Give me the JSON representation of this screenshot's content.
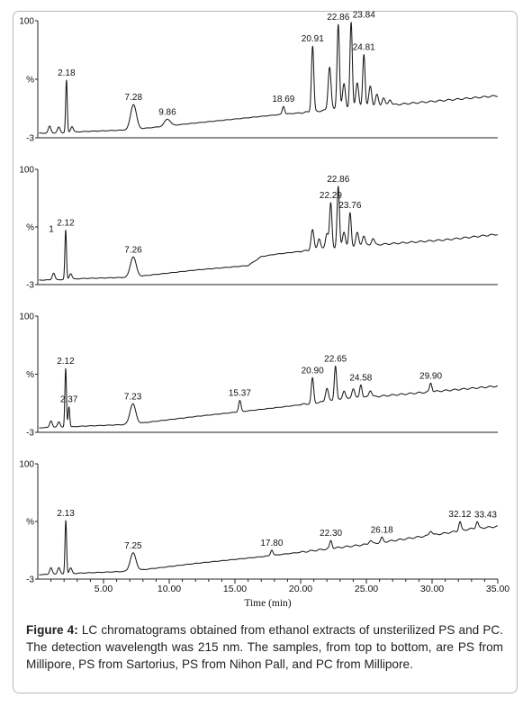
{
  "figure": {
    "caption_label": "Figure 4:",
    "caption_text": " LC chromatograms obtained from ethanol extracts of unsterilized PS and PC. The detection wavelength was 215 nm. The samples, from top to bottom, are PS from Millipore, PS from Sartorius, PS from Nihon Pall, and PC from Millipore."
  },
  "colors": {
    "trace": "#1a1a1a",
    "frame": "#b9b9b9",
    "axis": "#222222"
  },
  "chart_data": [
    {
      "type": "line",
      "panel": 1,
      "y_labels": [
        "100",
        "%",
        "-3"
      ],
      "xlim": [
        0,
        35
      ],
      "ylim": [
        -3,
        100
      ],
      "baseline": [
        [
          0.1,
          1
        ],
        [
          2.0,
          1.5
        ],
        [
          3.5,
          2.5
        ],
        [
          7,
          4
        ],
        [
          12,
          10
        ],
        [
          18,
          17
        ],
        [
          21,
          20
        ],
        [
          22.5,
          22
        ],
        [
          25,
          24
        ],
        [
          27,
          26
        ],
        [
          31,
          30
        ],
        [
          35,
          34
        ]
      ],
      "peaks": [
        {
          "label": "2.18",
          "x": 2.18,
          "height": 46
        },
        {
          "label": "7.28",
          "x": 7.28,
          "height": 22
        },
        {
          "label": "9.86",
          "x": 9.86,
          "height": 6
        },
        {
          "label": "18.69",
          "x": 18.69,
          "height": 7
        },
        {
          "label": "20.91",
          "x": 20.91,
          "height": 58
        },
        {
          "label": "22.86",
          "x": 22.86,
          "height": 75
        },
        {
          "label": "23.84",
          "x": 23.84,
          "height": 75
        },
        {
          "label": "24.81",
          "x": 24.81,
          "height": 47
        }
      ],
      "minor_peaks": [
        {
          "x": 0.9,
          "height": 6
        },
        {
          "x": 1.6,
          "height": 5
        },
        {
          "x": 2.6,
          "height": 5
        },
        {
          "x": 22.2,
          "height": 38
        },
        {
          "x": 23.3,
          "height": 22
        },
        {
          "x": 24.3,
          "height": 22
        },
        {
          "x": 25.3,
          "height": 18
        },
        {
          "x": 25.8,
          "height": 10
        },
        {
          "x": 26.3,
          "height": 7
        },
        {
          "x": 26.8,
          "height": 5
        }
      ]
    },
    {
      "type": "line",
      "panel": 2,
      "y_labels": [
        "100",
        "%",
        "-3"
      ],
      "extra_labels": [
        {
          "text": "1",
          "x": 1.3,
          "y": 44
        }
      ],
      "xlim": [
        0,
        35
      ],
      "ylim": [
        -3,
        100
      ],
      "baseline": [
        [
          0.1,
          1
        ],
        [
          2.0,
          1.5
        ],
        [
          3.5,
          2.5
        ],
        [
          7,
          3.5
        ],
        [
          12,
          10
        ],
        [
          16,
          14
        ],
        [
          17,
          22
        ],
        [
          18,
          24
        ],
        [
          21,
          28
        ],
        [
          23,
          30
        ],
        [
          25,
          32
        ],
        [
          31,
          37
        ],
        [
          35,
          42
        ]
      ],
      "peaks": [
        {
          "label": "2.12",
          "x": 2.12,
          "height": 44
        },
        {
          "label": "7.26",
          "x": 7.26,
          "height": 18
        },
        {
          "label": "22.29",
          "x": 22.29,
          "height": 40
        },
        {
          "label": "22.86",
          "x": 22.86,
          "height": 55
        },
        {
          "label": "23.76",
          "x": 23.76,
          "height": 30
        }
      ],
      "minor_peaks": [
        {
          "x": 1.2,
          "height": 6
        },
        {
          "x": 2.5,
          "height": 5
        },
        {
          "x": 20.9,
          "height": 18
        },
        {
          "x": 21.4,
          "height": 10
        },
        {
          "x": 22.0,
          "height": 14
        },
        {
          "x": 23.3,
          "height": 14
        },
        {
          "x": 24.3,
          "height": 12
        },
        {
          "x": 24.8,
          "height": 9
        },
        {
          "x": 25.5,
          "height": 6
        }
      ]
    },
    {
      "type": "line",
      "panel": 3,
      "y_labels": [
        "100",
        "%",
        "-3"
      ],
      "xlim": [
        0,
        35
      ],
      "ylim": [
        -3,
        100
      ],
      "baseline": [
        [
          0.1,
          1
        ],
        [
          2.0,
          1.5
        ],
        [
          3.5,
          2.5
        ],
        [
          7,
          4
        ],
        [
          12,
          11
        ],
        [
          16,
          16
        ],
        [
          19,
          20
        ],
        [
          21,
          23
        ],
        [
          24,
          27
        ],
        [
          27,
          30
        ],
        [
          31,
          34
        ],
        [
          35,
          38
        ]
      ],
      "peaks": [
        {
          "label": "2.12",
          "x": 2.12,
          "height": 52
        },
        {
          "label": "2.37",
          "x": 2.37,
          "height": 18
        },
        {
          "label": "7.23",
          "x": 7.23,
          "height": 18
        },
        {
          "label": "15.37",
          "x": 15.37,
          "height": 10
        },
        {
          "label": "20.90",
          "x": 20.9,
          "height": 22
        },
        {
          "label": "22.65",
          "x": 22.65,
          "height": 31
        },
        {
          "label": "24.58",
          "x": 24.58,
          "height": 12
        },
        {
          "label": "29.90",
          "x": 29.9,
          "height": 8
        }
      ],
      "minor_peaks": [
        {
          "x": 1.0,
          "height": 6
        },
        {
          "x": 1.6,
          "height": 5
        },
        {
          "x": 22.0,
          "height": 12
        },
        {
          "x": 23.3,
          "height": 8
        },
        {
          "x": 24.0,
          "height": 9
        },
        {
          "x": 25.3,
          "height": 6
        }
      ]
    },
    {
      "type": "line",
      "panel": 4,
      "y_labels": [
        "100",
        "%",
        "-3"
      ],
      "xlim": [
        0,
        35
      ],
      "ylim": [
        -3,
        100
      ],
      "xlabel": "Time (min)",
      "xticks": [
        5,
        10,
        15,
        20,
        25,
        30,
        35
      ],
      "xtick_labels": [
        "5.00",
        "10.00",
        "15.00",
        "20.00",
        "25.00",
        "30.00",
        "35.00"
      ],
      "baseline": [
        [
          0.1,
          1
        ],
        [
          2.0,
          1.5
        ],
        [
          3.5,
          2.5
        ],
        [
          7,
          4
        ],
        [
          12,
          11
        ],
        [
          17,
          17
        ],
        [
          20,
          21
        ],
        [
          22,
          24
        ],
        [
          25,
          28
        ],
        [
          28,
          33
        ],
        [
          31,
          38
        ],
        [
          33,
          42
        ],
        [
          35,
          44
        ]
      ],
      "peaks": [
        {
          "label": "2.13",
          "x": 2.13,
          "height": 48
        },
        {
          "label": "7.25",
          "x": 7.25,
          "height": 16
        },
        {
          "label": "17.80",
          "x": 17.8,
          "height": 5
        },
        {
          "label": "22.30",
          "x": 22.3,
          "height": 7
        },
        {
          "label": "26.18",
          "x": 26.18,
          "height": 4
        },
        {
          "label": "32.12",
          "x": 32.12,
          "height": 8
        },
        {
          "label": "33.43",
          "x": 33.43,
          "height": 6
        }
      ],
      "minor_peaks": [
        {
          "x": 1.0,
          "height": 6
        },
        {
          "x": 1.6,
          "height": 6
        },
        {
          "x": 2.5,
          "height": 5
        },
        {
          "x": 25.3,
          "height": 3
        },
        {
          "x": 29.9,
          "height": 4
        }
      ]
    }
  ]
}
